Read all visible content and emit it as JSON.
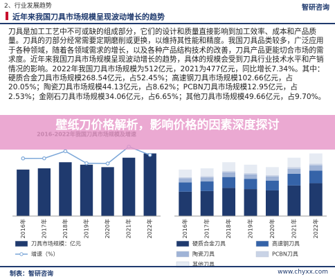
{
  "header": {
    "section": "2、行业发展趋势",
    "title": "近年来我国刀具市场规模呈现波动增长的趋势",
    "logo": "智研咨询"
  },
  "body": {
    "paragraph": "刀具是加工工艺中不可或缺的组成部分，它们的设计和质量直接影响到加工效率、成本和产品质量。刀具的刃部分经常需要定期磨削或更换，以维持其性能和精度。我国刀具品类较多，广泛应用于各种领域，随着各领域需求的增长，以及各种产品结构技术的改善，刀具产品更能切合市场的需求度。近年来我国刀具市场规模呈现波动增长的趋势，具体的规模会受到刀具行业技术水平和产销情况的影响。2022年我国刀具市场规模为512亿元，2021为477亿元，同比增长7.34%。其中：硬质合金刀具市场规模268.54亿元，占52.45%；高速钢刀具市场规模102.66亿元，占20.05%；陶瓷刀具市场规模44.13亿元，占8.62%；PCBN刀具市场规模12.95亿元，占2.53%；金刚石刀具市场规模34.06亿元，占6.65%；其他刀具市场规模49.66亿元，占9.70%。"
  },
  "banner": {
    "title": "壁纸刀价格解析，影响价格的因素深度探讨"
  },
  "chart_data": [
    {
      "type": "bar",
      "title": "2016-2022年我国刀具市场规模及增速",
      "categories": [
        "2016年",
        "2017年",
        "2018年",
        "2019年",
        "2020年",
        "2021年",
        "2022年"
      ],
      "series": [
        {
          "name": "刀具市场规模：亿元",
          "color": "#1f3a6e",
          "values": [
            380,
            390,
            440,
            420,
            400,
            477,
            512
          ]
        },
        {
          "name": "增速（%）",
          "color": "#7aa6d8",
          "type": "line",
          "axis": "y2",
          "values": [
            2.5,
            2.6,
            12.8,
            -4.5,
            -4.8,
            19.3,
            7.34
          ]
        }
      ],
      "ylim": [
        0,
        600
      ],
      "y2lim": [
        -80,
        25
      ]
    },
    {
      "type": "stacked_bar",
      "categories": [
        "2016年",
        "2017年",
        "2018年",
        "2019年",
        "2020年",
        "2021年",
        "2022年"
      ],
      "series": [
        {
          "name": "硬质合金刀具",
          "color": "#1f3a6e",
          "values": [
            199.3,
            204.6,
            230.8,
            220.3,
            209.8,
            250.2,
            268.54
          ]
        },
        {
          "name": "高速钢刀具",
          "color": "#3563a8",
          "values": [
            76.2,
            78.2,
            88.2,
            84.2,
            80.2,
            95.6,
            102.66
          ]
        },
        {
          "name": "陶瓷刀具",
          "color": "#9fb3d6",
          "values": [
            32.8,
            33.6,
            37.9,
            36.2,
            34.5,
            41.1,
            44.13
          ]
        },
        {
          "name": "PCBN刀具",
          "color": "#c9d3e6",
          "values": [
            9.6,
            9.9,
            11.1,
            10.6,
            10.1,
            12.1,
            12.95
          ]
        },
        {
          "name": "其他刀具",
          "color": "#e6ebf3",
          "values": [
            62.1,
            63.7,
            72.0,
            68.7,
            65.4,
            78.0,
            83.72
          ]
        }
      ],
      "ylim": [
        0,
        600
      ]
    }
  ],
  "footer": {
    "source": "制表：智研咨询",
    "url": "www.chyxx.com"
  }
}
